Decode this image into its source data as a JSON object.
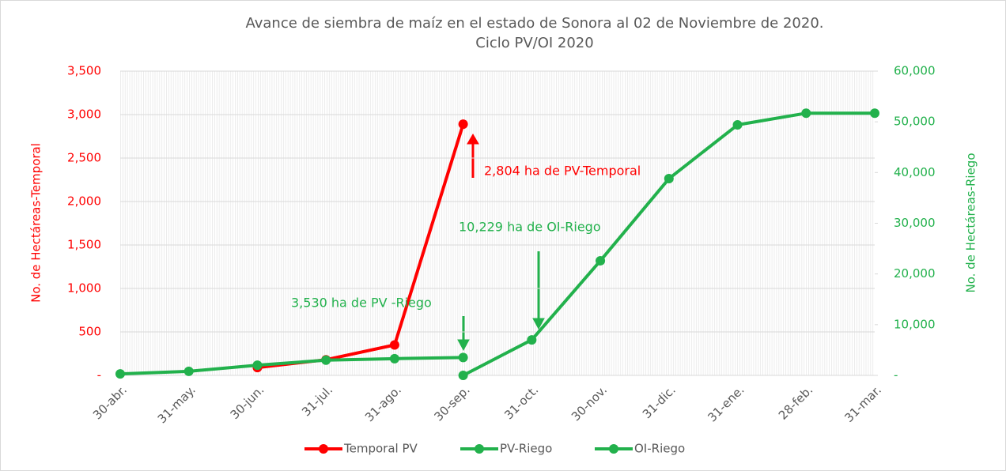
{
  "chart_data": {
    "type": "line",
    "title": "Avance de siembra de maíz en el estado de Sonora al 02 de Noviembre de 2020.",
    "subtitle": "Ciclo PV/OI 2020",
    "y_label": "No. de Hectáreas-Temporal",
    "y2_label": "No. de Hectáreas-Riego",
    "categories": [
      "30-abr.",
      "31-may.",
      "30-jun.",
      "31-jul.",
      "31-ago.",
      "30-sep.",
      "31-oct.",
      "30-nov.",
      "31-dic.",
      "31-ene.",
      "28-feb.",
      "31-mar."
    ],
    "ylim": [
      0,
      3500
    ],
    "yticks": [
      {
        "value": 0,
        "label": "-"
      },
      {
        "value": 500,
        "label": "500"
      },
      {
        "value": 1000,
        "label": "1,000"
      },
      {
        "value": 1500,
        "label": "1,500"
      },
      {
        "value": 2000,
        "label": "2,000"
      },
      {
        "value": 2500,
        "label": "2,500"
      },
      {
        "value": 3000,
        "label": "3,000"
      },
      {
        "value": 3500,
        "label": "3,500"
      }
    ],
    "y2lim": [
      0,
      60000
    ],
    "y2ticks": [
      {
        "value": 0,
        "label": "-"
      },
      {
        "value": 10000,
        "label": "10,000"
      },
      {
        "value": 20000,
        "label": "20,000"
      },
      {
        "value": 30000,
        "label": "30,000"
      },
      {
        "value": 40000,
        "label": "40,000"
      },
      {
        "value": 50000,
        "label": "50,000"
      },
      {
        "value": 60000,
        "label": "60,000"
      }
    ],
    "y_color": "#ff0000",
    "y2_color": "#22b14c",
    "grid": true,
    "legend": "bottom",
    "series": [
      {
        "name": "Temporal PV",
        "color": "#ff0000",
        "axis": "y",
        "values": [
          null,
          null,
          90,
          180,
          350,
          2890,
          null,
          null,
          null,
          null,
          null,
          null
        ]
      },
      {
        "name": "PV-Riego",
        "color": "#22b14c",
        "axis": "y2",
        "values": [
          300,
          800,
          2000,
          3000,
          3300,
          3530,
          null,
          null,
          null,
          null,
          null,
          null
        ]
      },
      {
        "name": "OI-Riego",
        "color": "#22b14c",
        "axis": "y2",
        "values": [
          null,
          null,
          null,
          null,
          null,
          0,
          7000,
          22600,
          38800,
          49400,
          51700,
          51700
        ]
      }
    ],
    "annotations": [
      {
        "text": "2,804 ha de PV-Temporal",
        "color": "#ff0000"
      },
      {
        "text": "10,229 ha de OI-Riego",
        "color": "#22b14c"
      },
      {
        "text": "3,530 ha de PV   -Riego",
        "color": "#22b14c"
      }
    ]
  }
}
